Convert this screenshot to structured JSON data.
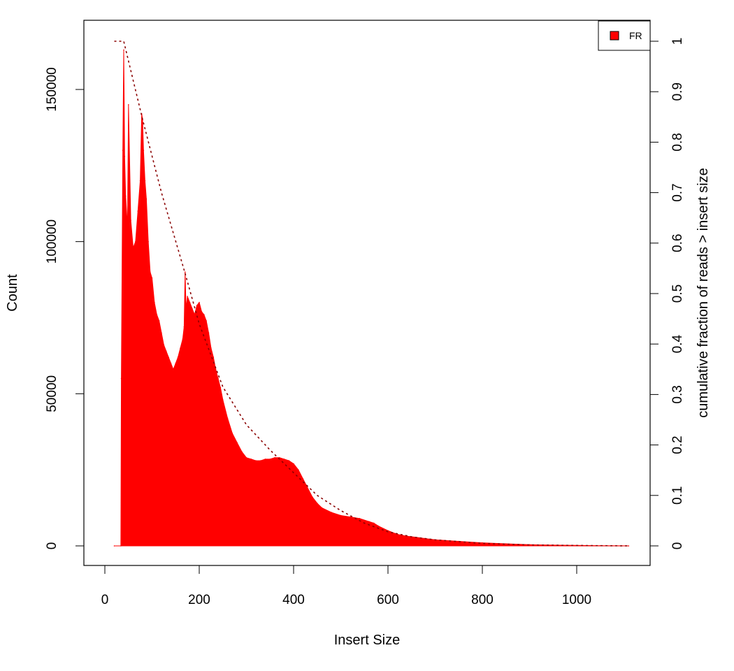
{
  "chart_data": {
    "type": "area",
    "xlabel": "Insert Size",
    "ylabel": "Count",
    "y2label": "cumulative fraction of reads > insert size",
    "xlim": [
      0,
      1150
    ],
    "ylim": [
      0,
      170000
    ],
    "y2lim": [
      0,
      1
    ],
    "x_ticks": [
      0,
      200,
      400,
      600,
      800,
      1000
    ],
    "y_ticks": [
      0,
      50000,
      100000,
      150000
    ],
    "y2_ticks": [
      0,
      0.1,
      0.2,
      0.3,
      0.4,
      0.5,
      0.6,
      0.7,
      0.8,
      0.9,
      1
    ],
    "legend": {
      "position": "top-right",
      "entries": [
        "FR"
      ]
    },
    "grid": false,
    "colors": {
      "histogram": "#ff0000",
      "cumulative": "#8b0000"
    },
    "series": [
      {
        "name": "FR",
        "style": "histogram",
        "x": [
          20,
          34,
          35,
          38,
          40,
          42,
          44,
          48,
          50,
          55,
          60,
          65,
          70,
          75,
          78,
          80,
          82,
          85,
          88,
          92,
          96,
          100,
          105,
          110,
          115,
          120,
          125,
          130,
          135,
          140,
          145,
          150,
          155,
          160,
          165,
          168,
          170,
          172,
          175,
          180,
          185,
          190,
          195,
          200,
          205,
          210,
          215,
          220,
          225,
          230,
          235,
          240,
          245,
          250,
          260,
          270,
          280,
          290,
          300,
          310,
          320,
          330,
          340,
          350,
          360,
          370,
          380,
          390,
          400,
          410,
          420,
          430,
          440,
          450,
          460,
          480,
          500,
          520,
          540,
          560,
          570,
          580,
          600,
          620,
          640,
          660,
          680,
          700,
          750,
          800,
          850,
          900,
          950,
          1000,
          1050,
          1110
        ],
        "values": [
          0,
          0,
          55000,
          130000,
          163000,
          128000,
          115000,
          105000,
          145000,
          107000,
          98000,
          100000,
          110000,
          120000,
          142000,
          140000,
          130000,
          120000,
          114000,
          100000,
          90000,
          88000,
          80000,
          76000,
          74000,
          70000,
          66000,
          64000,
          62000,
          60000,
          58000,
          60000,
          62000,
          65000,
          68000,
          72000,
          90000,
          78000,
          82000,
          80000,
          78000,
          76000,
          79000,
          80000,
          77000,
          76000,
          74000,
          70000,
          65000,
          62000,
          58000,
          55000,
          52000,
          48000,
          42000,
          37000,
          34000,
          31000,
          29000,
          28500,
          28000,
          28000,
          28500,
          28500,
          29000,
          29000,
          28500,
          28000,
          27000,
          25000,
          22000,
          19000,
          16000,
          14000,
          12500,
          11000,
          10000,
          9500,
          9000,
          8000,
          7500,
          6500,
          5000,
          3800,
          3200,
          2800,
          2400,
          2000,
          1500,
          1000,
          700,
          400,
          250,
          150,
          80,
          0
        ]
      },
      {
        "name": "cumulative",
        "style": "dashed-line",
        "x": [
          20,
          40,
          80,
          120,
          170,
          200,
          250,
          300,
          350,
          400,
          450,
          500,
          550,
          600,
          650,
          700,
          800,
          900,
          1000,
          1110
        ],
        "values": [
          1.0,
          1.0,
          0.845,
          0.7,
          0.54,
          0.44,
          0.315,
          0.24,
          0.19,
          0.145,
          0.1,
          0.07,
          0.045,
          0.028,
          0.018,
          0.012,
          0.005,
          0.002,
          0.0008,
          0
        ]
      }
    ]
  }
}
